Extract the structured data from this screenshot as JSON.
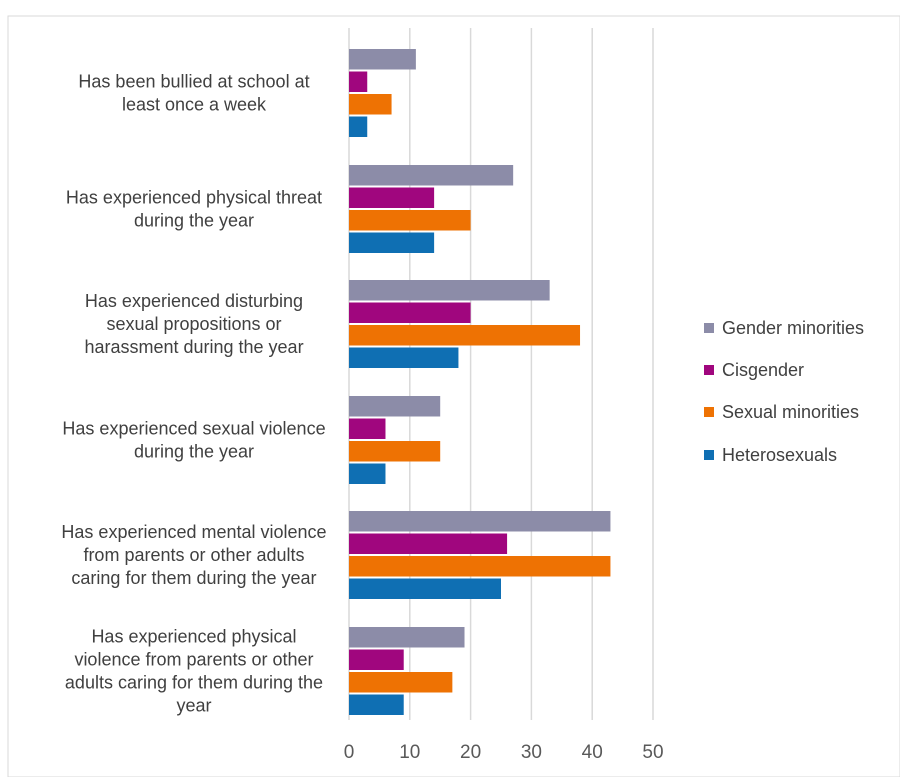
{
  "chart_data": {
    "type": "bar",
    "orientation": "horizontal",
    "title": "",
    "xlabel": "",
    "ylabel": "",
    "xlim": [
      0,
      50
    ],
    "ticks": [
      "0",
      "10",
      "20",
      "30",
      "40",
      "50"
    ],
    "grid": true,
    "legend_position": "right",
    "categories": [
      [
        "Has been bullied at school at",
        "least once a week"
      ],
      [
        "Has experienced physical threat",
        "during the year"
      ],
      [
        "Has experienced disturbing",
        "sexual propositions or",
        "harassment during the year"
      ],
      [
        "Has experienced sexual violence",
        "during the year"
      ],
      [
        "Has experienced mental violence",
        "from parents or other adults",
        "caring for them during the year"
      ],
      [
        "Has experienced physical",
        "violence from parents or other",
        "adults caring for them during the",
        "year"
      ]
    ],
    "series": [
      {
        "name": "Gender minorities",
        "color": "#8c8ca8",
        "values": [
          11,
          27,
          33,
          15,
          43,
          19
        ]
      },
      {
        "name": "Cisgender",
        "color": "#a0067e",
        "values": [
          3,
          14,
          20,
          6,
          26,
          9
        ]
      },
      {
        "name": "Sexual minorities",
        "color": "#ee7203",
        "values": [
          7,
          20,
          38,
          15,
          43,
          17
        ]
      },
      {
        "name": "Heterosexuals",
        "color": "#0f6fb3",
        "values": [
          3,
          14,
          18,
          6,
          25,
          9
        ]
      }
    ],
    "colors": {
      "gridline": "#d9d9d9",
      "frame": "#d9d9d9"
    }
  }
}
